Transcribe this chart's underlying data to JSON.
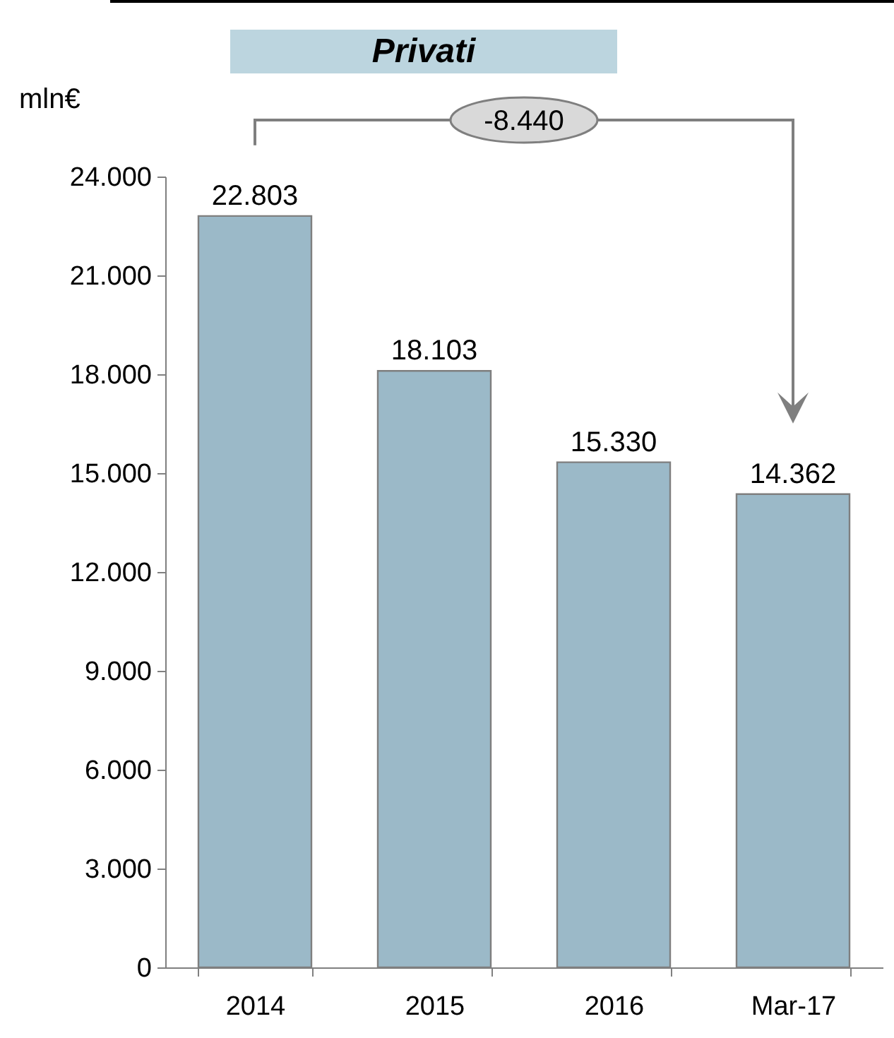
{
  "chart_data": {
    "type": "bar",
    "title": "Privati",
    "ylabel": "mln€",
    "categories": [
      "2014",
      "2015",
      "2016",
      "Mar-17"
    ],
    "values": [
      22803,
      18103,
      15330,
      14362
    ],
    "value_labels": [
      "22.803",
      "18.103",
      "15.330",
      "14.362"
    ],
    "color": "#9bb9c8",
    "ylim": [
      0,
      24000
    ],
    "yticks": [
      {
        "value": 0,
        "label": "0"
      },
      {
        "value": 3000,
        "label": "3.000"
      },
      {
        "value": 6000,
        "label": "6.000"
      },
      {
        "value": 9000,
        "label": "9.000"
      },
      {
        "value": 12000,
        "label": "12.000"
      },
      {
        "value": 15000,
        "label": "15.000"
      },
      {
        "value": 18000,
        "label": "18.000"
      },
      {
        "value": 21000,
        "label": "21.000"
      },
      {
        "value": 24000,
        "label": "24.000"
      }
    ],
    "annotations": [
      "-8.440"
    ]
  }
}
